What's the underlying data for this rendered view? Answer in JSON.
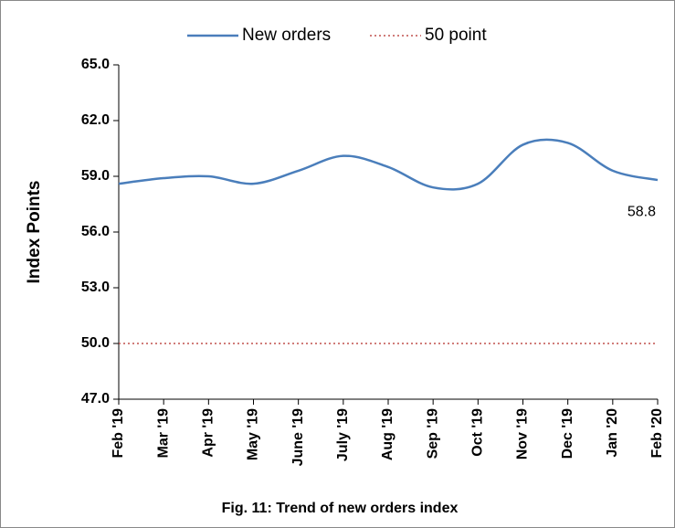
{
  "chart_data": {
    "type": "line",
    "title": "Fig. 11: Trend of  new orders index",
    "y_label": "Index Points",
    "categories": [
      "Feb '19",
      "Mar '19",
      "Apr '19",
      "May '19",
      "June '19",
      "July '19",
      "Aug '19",
      "Sep '19",
      "Oct '19",
      "Nov '19",
      "Dec '19",
      "Jan '20",
      "Feb '20"
    ],
    "series": [
      {
        "name": "New orders",
        "color": "#4a7ebb",
        "style": "solid",
        "values": [
          58.6,
          58.9,
          59.0,
          58.6,
          59.3,
          60.1,
          59.5,
          58.4,
          58.6,
          60.7,
          60.8,
          59.3,
          58.8
        ]
      },
      {
        "name": "50 point",
        "color": "#c0504d",
        "style": "dotted",
        "values": [
          50,
          50,
          50,
          50,
          50,
          50,
          50,
          50,
          50,
          50,
          50,
          50,
          50
        ]
      }
    ],
    "value_label_series": 0,
    "value_label_index": 12,
    "ylim": [
      47,
      65
    ],
    "yticks": [
      {
        "value": 47,
        "label": "47.0"
      },
      {
        "value": 50,
        "label": "50.0"
      },
      {
        "value": 53,
        "label": "53.0"
      },
      {
        "value": 56,
        "label": "56.0"
      },
      {
        "value": 59,
        "label": "59.0"
      },
      {
        "value": 62,
        "label": "62.0"
      },
      {
        "value": 65,
        "label": "65.0"
      }
    ],
    "legend": "top"
  }
}
